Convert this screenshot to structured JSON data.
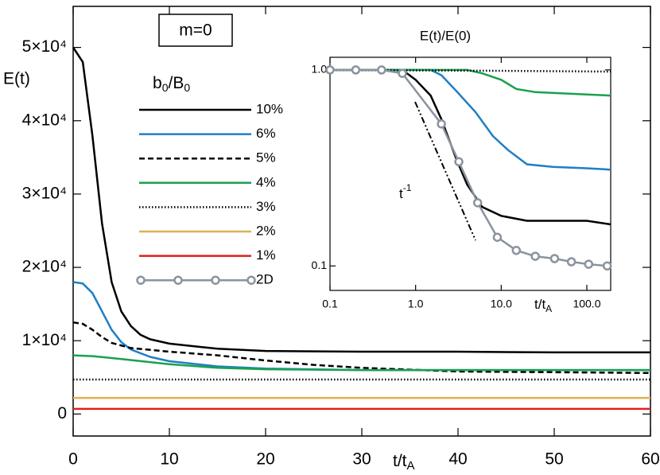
{
  "chart_data": [
    {
      "type": "line",
      "ylabel": "E(t)",
      "xlabel": [
        "t/t",
        "A"
      ],
      "annotation": "m=0",
      "legend_title": [
        "b",
        "0",
        "/B",
        "0"
      ],
      "xlim": [
        0,
        60
      ],
      "xticks": [
        0,
        10,
        20,
        30,
        40,
        50,
        60
      ],
      "ylim": [
        -3000,
        55600
      ],
      "yticks": [
        0,
        {
          "value": 10000,
          "label": "1×10⁴"
        },
        {
          "value": 20000,
          "label": "2×10⁴"
        },
        {
          "value": 30000,
          "label": "3×10⁴"
        },
        {
          "value": 40000,
          "label": "4×10⁴"
        },
        {
          "value": 50000,
          "label": "5×10⁴"
        }
      ],
      "series": [
        {
          "name": "10%",
          "color": "#000000",
          "dash": "solid",
          "x": [
            0,
            1,
            2,
            3,
            4,
            5,
            6,
            7,
            8,
            10,
            15,
            20,
            30,
            40,
            50,
            60
          ],
          "values": [
            50000,
            48000,
            38000,
            26000,
            18000,
            14000,
            12000,
            10800,
            10200,
            9600,
            8900,
            8600,
            8500,
            8500,
            8400,
            8400
          ]
        },
        {
          "name": "6%",
          "color": "#1f7fc4",
          "dash": "solid",
          "x": [
            0,
            1,
            2,
            3,
            4,
            5,
            6,
            8,
            10,
            15,
            20,
            30,
            40,
            60
          ],
          "values": [
            18000,
            17800,
            16500,
            14000,
            11500,
            9800,
            8800,
            7800,
            7200,
            6500,
            6200,
            6000,
            6000,
            6000
          ]
        },
        {
          "name": "5%",
          "color": "#000000",
          "dash": "dashed",
          "x": [
            0,
            1,
            2,
            3,
            4,
            6,
            10,
            15,
            20,
            25,
            30,
            40,
            50,
            60
          ],
          "values": [
            12500,
            12300,
            11500,
            10500,
            9700,
            9000,
            8500,
            8000,
            7300,
            6700,
            6300,
            5800,
            5700,
            5600
          ]
        },
        {
          "name": "4%",
          "color": "#1aa050",
          "dash": "solid",
          "x": [
            0,
            2,
            5,
            10,
            15,
            20,
            30,
            60
          ],
          "values": [
            8000,
            7900,
            7500,
            6800,
            6300,
            6100,
            6000,
            6000
          ]
        },
        {
          "name": "3%",
          "color": "#000000",
          "dash": "dotted",
          "x": [
            0,
            60
          ],
          "values": [
            4700,
            4700
          ]
        },
        {
          "name": "2%",
          "color": "#e0b050",
          "dash": "solid",
          "x": [
            0,
            60
          ],
          "values": [
            2200,
            2200
          ]
        },
        {
          "name": "1%",
          "color": "#e02020",
          "dash": "solid",
          "x": [
            0,
            60
          ],
          "values": [
            700,
            700
          ]
        }
      ]
    },
    {
      "type": "line",
      "title": "E(t)/E(0)",
      "xlabel": [
        "t/t",
        "A"
      ],
      "annotation": [
        "t",
        "-1"
      ],
      "xlog": true,
      "ylog": true,
      "xlim": [
        0.1,
        190
      ],
      "xticks": [
        0.1,
        {
          "value": 1,
          "label": "1.0"
        },
        {
          "value": 10,
          "label": "10.0"
        },
        {
          "value": 100,
          "label": "100.0"
        }
      ],
      "ylim": [
        0.075,
        1.16
      ],
      "yticks": [
        {
          "value": 1,
          "label": "1.0"
        },
        0.1
      ],
      "series": [
        {
          "color": "#000000",
          "dash": "solid",
          "x": [
            0.1,
            0.7,
            1,
            1.5,
            2,
            3,
            4,
            6,
            10,
            20,
            50,
            100,
            190
          ],
          "values": [
            1,
            1,
            0.89,
            0.74,
            0.56,
            0.35,
            0.26,
            0.2,
            0.18,
            0.17,
            0.17,
            0.17,
            0.163
          ]
        },
        {
          "color": "#1f7fc4",
          "dash": "solid",
          "x": [
            0.1,
            1.5,
            2,
            3,
            5,
            8,
            12,
            20,
            40,
            100,
            190
          ],
          "values": [
            1,
            1,
            0.94,
            0.78,
            0.61,
            0.46,
            0.39,
            0.33,
            0.32,
            0.315,
            0.31
          ]
        },
        {
          "color": "#1aa050",
          "dash": "solid",
          "x": [
            0.1,
            4,
            6,
            10,
            15,
            25,
            50,
            190
          ],
          "values": [
            1,
            1,
            0.96,
            0.89,
            0.8,
            0.77,
            0.76,
            0.74
          ]
        },
        {
          "color": "#000000",
          "dash": "dotted",
          "x": [
            0.1,
            10,
            190
          ],
          "values": [
            1,
            0.99,
            0.98
          ]
        },
        {
          "name": "2D",
          "color": "#8a939e",
          "dash": "solid",
          "marker": "circle",
          "x": [
            0.1,
            0.2,
            0.4,
            0.7,
            2,
            3.2,
            5.3,
            9,
            15,
            25,
            42,
            66,
            105,
            173
          ],
          "values": [
            1,
            1,
            1,
            0.96,
            0.53,
            0.34,
            0.21,
            0.14,
            0.12,
            0.112,
            0.109,
            0.105,
            0.102,
            0.1
          ]
        }
      ]
    }
  ]
}
